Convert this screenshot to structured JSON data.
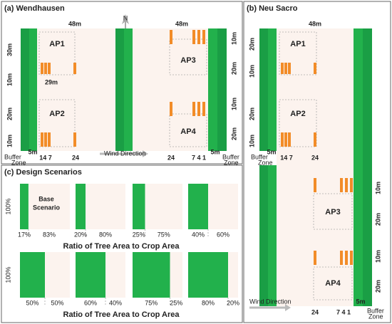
{
  "wendhausen": {
    "title": "(a) Wendhausen",
    "north": "N",
    "plots": [
      "AP1",
      "AP2",
      "AP3",
      "AP4"
    ],
    "top": [
      "48m",
      "48m"
    ],
    "inner": "29m",
    "left": [
      "30m",
      "10m",
      "20m",
      "10m"
    ],
    "right": [
      "10m",
      "20m",
      "10m",
      "20m"
    ],
    "buffer_width": [
      "5m",
      "5m"
    ],
    "buffer_zone": [
      "Buffer",
      "Zone"
    ],
    "bottom": [
      "14 7",
      "24",
      "24",
      "7 4 1"
    ],
    "wind": "Wind Direction"
  },
  "neu_sacro": {
    "title": "(b) Neu Sacro",
    "plots": [
      "AP1",
      "AP2",
      "AP3",
      "AP4"
    ],
    "top": "48m",
    "left": [
      "20m",
      "10m",
      "20m",
      "10m"
    ],
    "right": [
      "10m",
      "20m",
      "10m",
      "20m"
    ],
    "buffer_width": [
      "5m",
      "5m"
    ],
    "buffer_zone": [
      "Buffer",
      "Zone"
    ],
    "bottom": [
      "14 7",
      "24",
      "24",
      "7 4 1"
    ],
    "wind": "Wind Direction"
  },
  "scenarios": {
    "title": "(c) Design Scenarios",
    "height": "100%",
    "base": [
      "Base",
      "Scenario"
    ],
    "caption": "Ratio of Tree Area to Crop Area",
    "items": [
      {
        "tree": {
          "value": 17,
          "label": "17%"
        },
        "crop": {
          "value": 83,
          "label": "83%"
        }
      },
      {
        "tree": {
          "value": 20,
          "label": "20%"
        },
        "crop": {
          "value": 80,
          "label": "80%"
        }
      },
      {
        "tree": {
          "value": 25,
          "label": "25%"
        },
        "crop": {
          "value": 75,
          "label": "75%"
        }
      },
      {
        "tree": {
          "value": 40,
          "label": "40%"
        },
        "crop": {
          "value": 60,
          "label": "60%"
        }
      },
      {
        "tree": {
          "value": 50,
          "label": "50%"
        },
        "crop": {
          "value": 50,
          "label": "50%"
        }
      },
      {
        "tree": {
          "value": 60,
          "label": "60%"
        },
        "crop": {
          "value": 40,
          "label": "40%"
        }
      },
      {
        "tree": {
          "value": 75,
          "label": "75%"
        },
        "crop": {
          "value": 25,
          "label": "25%"
        }
      },
      {
        "tree": {
          "value": 80,
          "label": "80%"
        },
        "crop": {
          "value": 20,
          "label": "20%"
        }
      }
    ]
  }
}
